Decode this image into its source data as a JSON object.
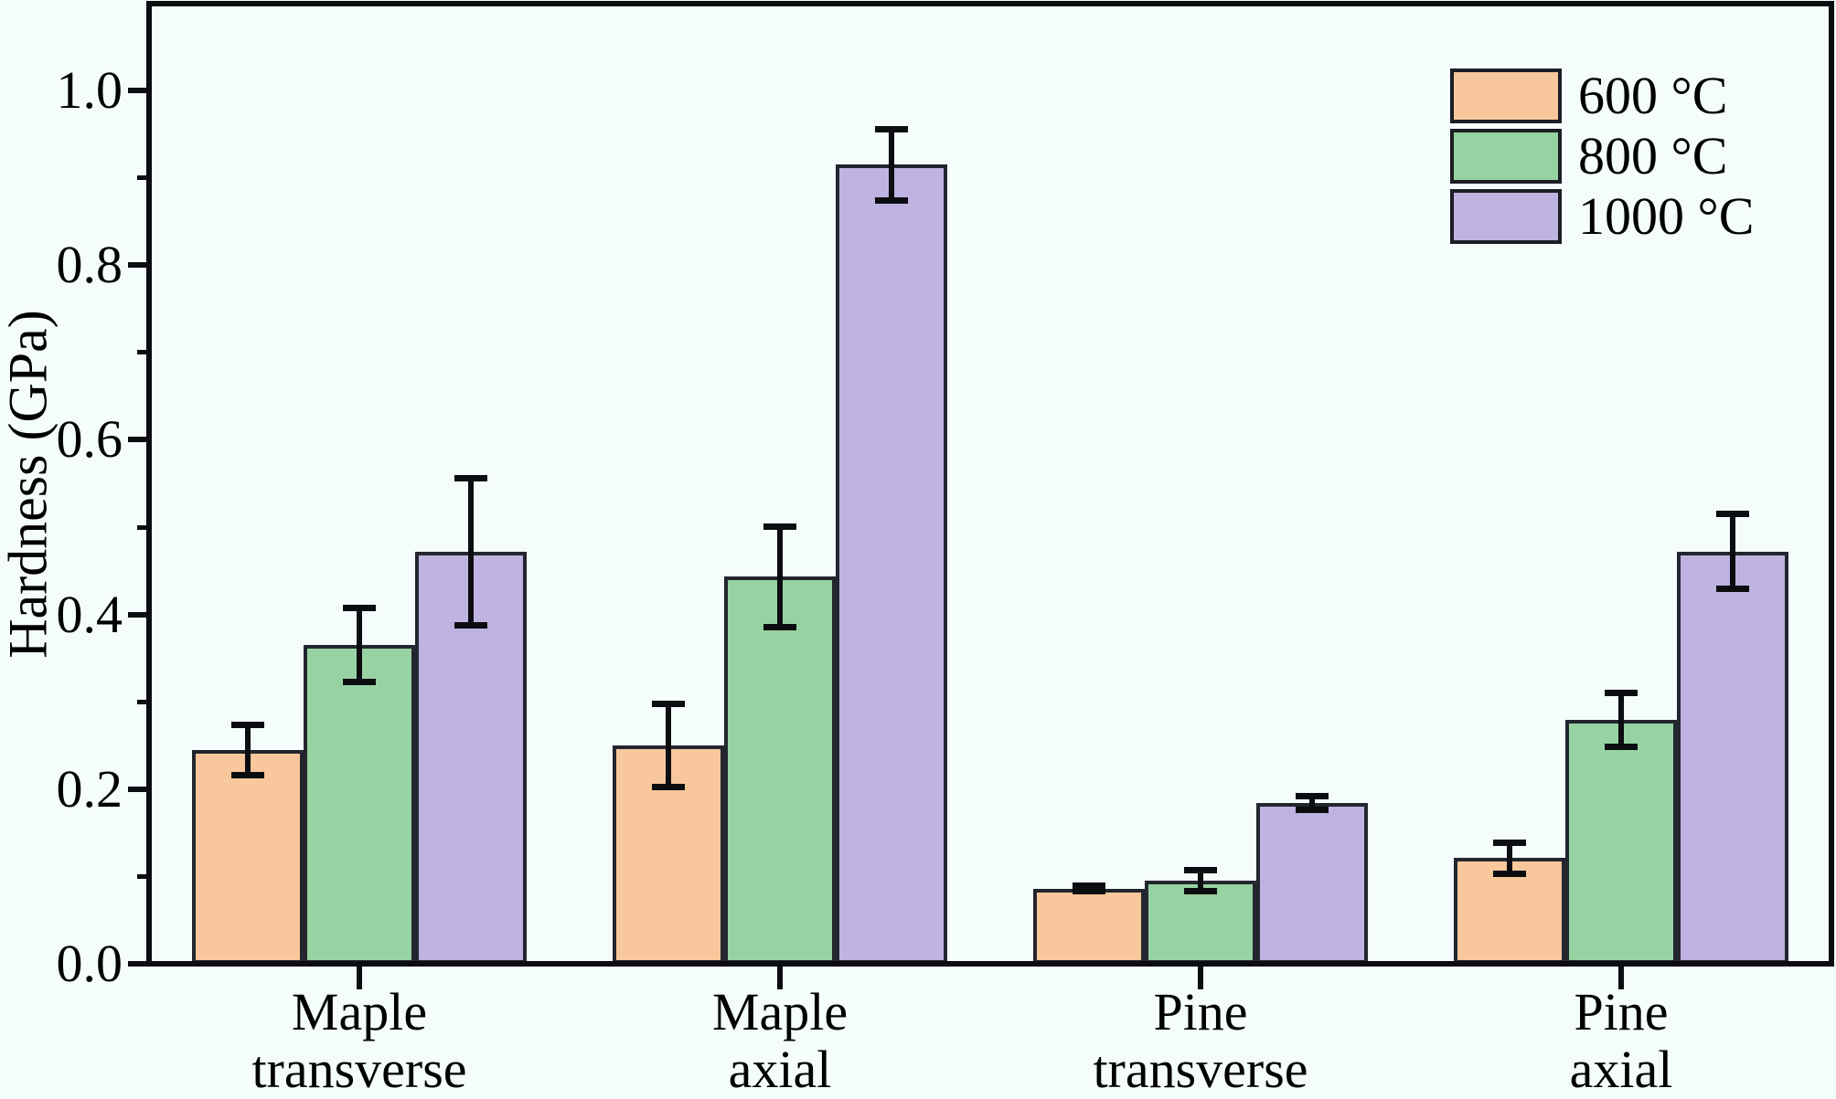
{
  "background": "#F5FCFC",
  "chart_data": {
    "type": "bar",
    "title": "",
    "xlabel": "",
    "ylabel": "Hardness (GPa)",
    "ylim": [
      0,
      1.1
    ],
    "grid": false,
    "legend_position": "upper-right",
    "yticks_major": [
      "0.0",
      "0.2",
      "0.4",
      "0.6",
      "0.8",
      "1.0"
    ],
    "yticks_minor": [
      0.1,
      0.3,
      0.5,
      0.7,
      0.9
    ],
    "categories": [
      {
        "line1": "Maple",
        "line2": "transverse"
      },
      {
        "line1": "Maple",
        "line2": "axial"
      },
      {
        "line1": "Pine",
        "line2": "transverse"
      },
      {
        "line1": "Pine",
        "line2": "axial"
      }
    ],
    "series": [
      {
        "name": "600 °C",
        "color": "#F8C89C",
        "values": [
          0.245,
          0.25,
          0.086,
          0.121
        ],
        "errors": [
          0.029,
          0.048,
          0.003,
          0.018
        ]
      },
      {
        "name": "800 °C",
        "color": "#97D3A2",
        "values": [
          0.365,
          0.443,
          0.095,
          0.279
        ],
        "errors": [
          0.042,
          0.058,
          0.012,
          0.031
        ]
      },
      {
        "name": "1000 °C",
        "color": "#BFB3E1",
        "values": [
          0.472,
          0.915,
          0.184,
          0.472
        ],
        "errors": [
          0.084,
          0.041,
          0.008,
          0.043
        ]
      }
    ],
    "bar_edge_color": "#23262E",
    "axis_color": "#0B0D10"
  }
}
